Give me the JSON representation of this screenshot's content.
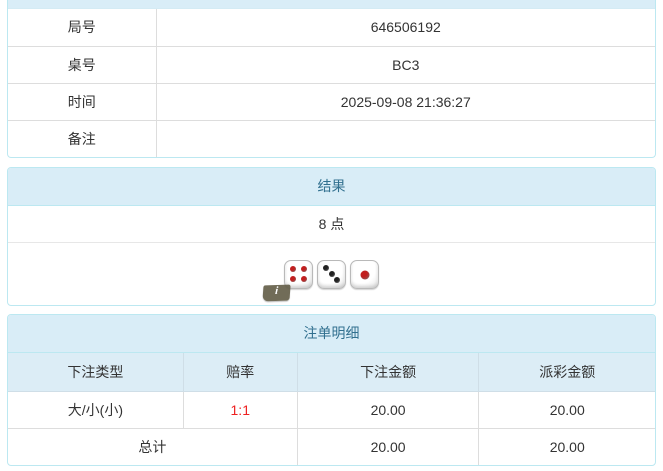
{
  "colors": {
    "panel_border": "#bce8f1",
    "heading_bg": "#d9edf7",
    "heading_text": "#31708f",
    "row_border": "#dddddd",
    "text": "#333333",
    "odds_red": "#ee2222",
    "dice_red": "#c21f1f",
    "dice_black": "#222222"
  },
  "info_table": {
    "rows": [
      {
        "label": "局号",
        "value": "646506192"
      },
      {
        "label": "桌号",
        "value": "BC3"
      },
      {
        "label": "时间",
        "value": "2025-09-08 21:36:27"
      },
      {
        "label": "备注",
        "value": ""
      }
    ]
  },
  "result_panel": {
    "title": "结果",
    "points": "8 点",
    "dice": [
      {
        "value": 4,
        "color": "#c21f1f"
      },
      {
        "value": 3,
        "color": "#222222"
      },
      {
        "value": 1,
        "color": "#c21f1f"
      }
    ],
    "info_badge_label": "i"
  },
  "bets_panel": {
    "title": "注单明细",
    "columns": [
      "下注类型",
      "赔率",
      "下注金额",
      "派彩金额"
    ],
    "rows": [
      {
        "bet_type": "大/小(小)",
        "odds": "1:1",
        "bet_amount": "20.00",
        "payout_amount": "20.00"
      }
    ],
    "total": {
      "label": "总计",
      "bet_amount": "20.00",
      "payout_amount": "20.00"
    }
  }
}
